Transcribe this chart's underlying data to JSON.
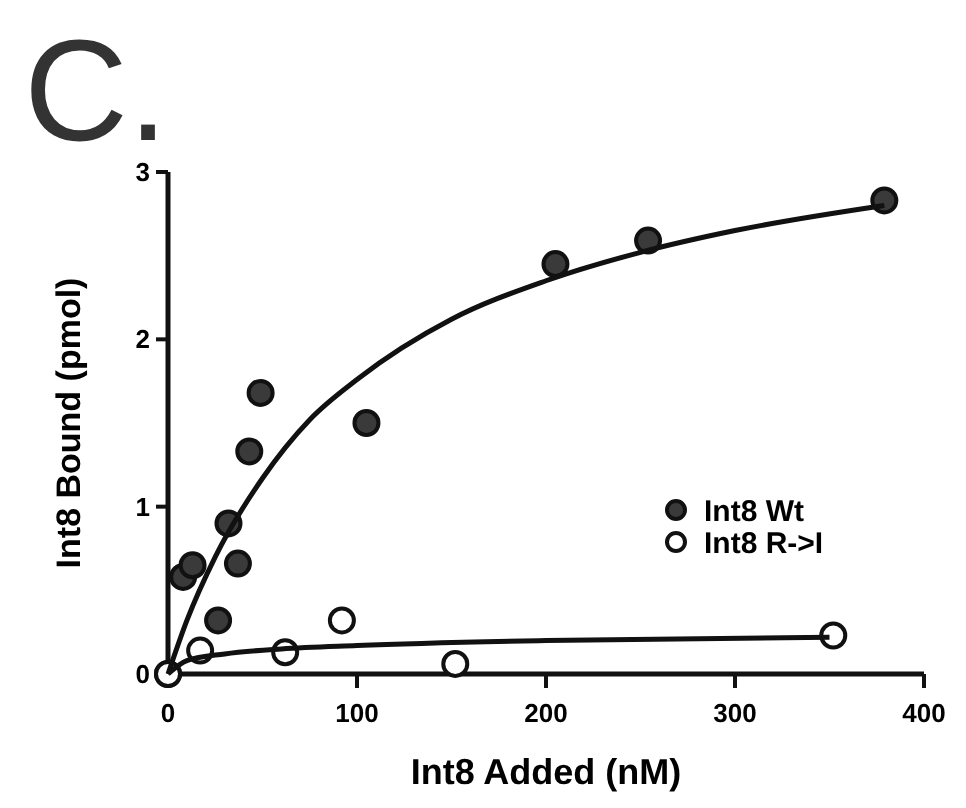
{
  "chart_data": {
    "type": "scatter",
    "title": "C.",
    "xlabel": "Int8 Added (nM)",
    "ylabel": "Int8 Bound (pmol)",
    "xlim": [
      0,
      400
    ],
    "xticks": [
      0,
      100,
      200,
      300,
      400
    ],
    "ylim": [
      0,
      3
    ],
    "yticks": [
      0,
      1,
      2,
      3
    ],
    "grid": false,
    "legend": "right",
    "marker": "circle",
    "series": [
      {
        "name": "Int8 Wt",
        "color": "#3a3a3a",
        "x": [
          0,
          8,
          13,
          26.5,
          32,
          37,
          43,
          49,
          105,
          205,
          254,
          379
        ],
        "values": [
          0,
          0.58,
          0.65,
          0.32,
          0.9,
          0.66,
          1.33,
          1.68,
          1.5,
          2.45,
          2.59,
          2.83
        ]
      },
      {
        "name": "Int8 R->I",
        "color": "#ffffff",
        "x": [
          0,
          17,
          62,
          92,
          152,
          352
        ],
        "values": [
          0,
          0.14,
          0.13,
          0.32,
          0.06,
          0.23
        ]
      },
      {
        "type": "line",
        "color": "#111111",
        "marker": "none",
        "x": [
          0,
          10,
          25,
          50,
          75,
          100,
          150,
          200,
          250,
          300,
          379
        ],
        "values": [
          0,
          0.32,
          0.7,
          1.17,
          1.52,
          1.76,
          2.12,
          2.35,
          2.52,
          2.65,
          2.8
        ]
      },
      {
        "type": "line",
        "color": "#111111",
        "marker": "none",
        "x": [
          0,
          10,
          30,
          60,
          100,
          200,
          350
        ],
        "values": [
          0,
          0.08,
          0.12,
          0.15,
          0.17,
          0.2,
          0.22
        ]
      }
    ]
  }
}
